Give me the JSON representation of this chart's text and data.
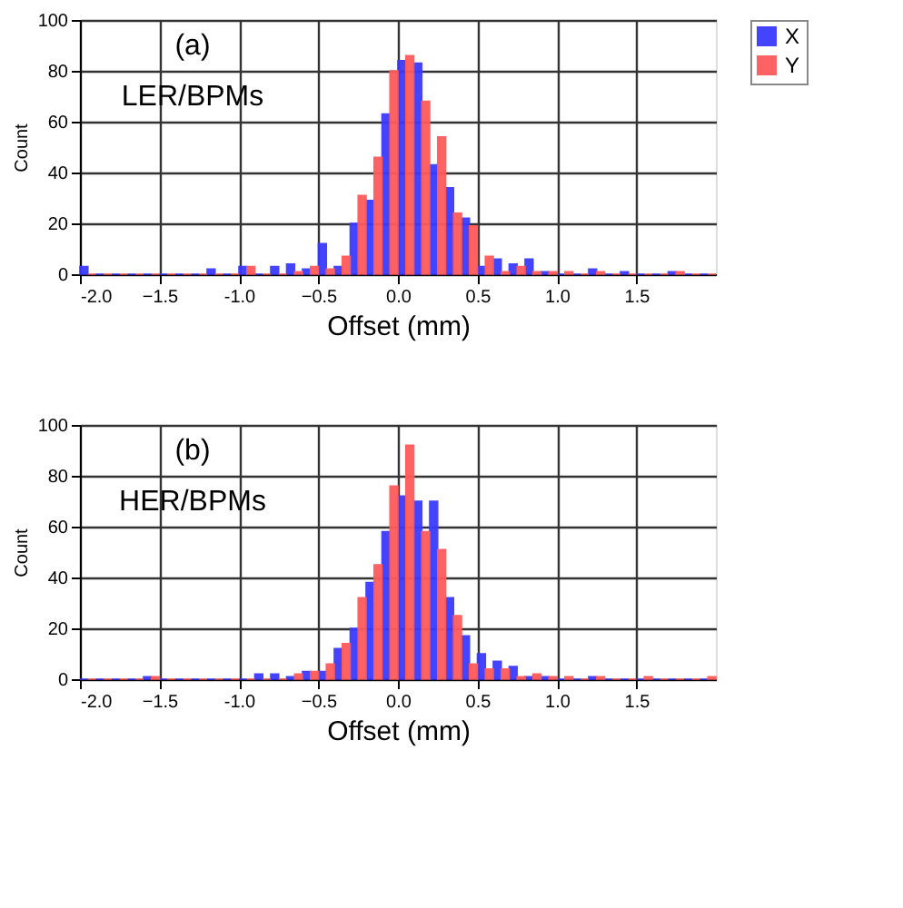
{
  "chart_data": [
    {
      "type": "histogram",
      "xlabel": "Offset (mm)",
      "ylabel": "Count",
      "annotations": [
        "(a)",
        "LER/BPMs"
      ],
      "bins": [
        -2.0,
        -1.9,
        -1.8,
        -1.7,
        -1.6,
        -1.5,
        -1.4,
        -1.3,
        -1.2,
        -1.1,
        -1.0,
        -0.9,
        -0.8,
        -0.7,
        -0.6,
        -0.5,
        -0.4,
        -0.3,
        -0.2,
        -0.1,
        0.0,
        0.1,
        0.2,
        0.3,
        0.4,
        0.5,
        0.6,
        0.7,
        0.8,
        0.9,
        1.0,
        1.1,
        1.2,
        1.3,
        1.4,
        1.5,
        1.6,
        1.7,
        1.8,
        1.9,
        2.0
      ],
      "series": [
        {
          "name": "X",
          "color": "#3a3aff",
          "values": [
            3,
            0,
            0,
            0,
            0,
            0,
            0,
            0,
            2,
            0,
            3,
            0,
            3,
            4,
            2,
            12,
            3,
            20,
            29,
            63,
            84,
            83,
            43,
            34,
            22,
            3,
            6,
            4,
            6,
            1,
            0,
            0,
            2,
            0,
            1,
            0,
            0,
            1,
            0,
            0
          ]
        },
        {
          "name": "Y",
          "color": "#ff5a5a",
          "values": [
            0,
            0,
            0,
            0,
            0,
            0,
            0,
            0,
            0,
            0,
            3,
            0,
            0,
            1,
            3,
            2,
            7,
            31,
            46,
            80,
            86,
            68,
            54,
            24,
            19,
            7,
            1,
            3,
            1,
            1,
            1,
            0,
            1,
            0,
            0,
            0,
            0,
            1,
            0,
            0
          ]
        }
      ],
      "xlim": [
        -2.0,
        2.0
      ],
      "xticks": [
        {
          "value": -2,
          "label": "-2.0"
        },
        -1.5,
        {
          "value": -1,
          "label": "-1.0"
        },
        -0.5,
        {
          "value": 0,
          "label": "0.0"
        },
        0.5,
        {
          "value": 1,
          "label": "1.0"
        },
        1.5
      ],
      "ylim": [
        0,
        100
      ],
      "yticks": [
        0,
        20,
        40,
        60,
        80,
        100
      ],
      "grid": true,
      "legend": "right"
    },
    {
      "type": "histogram",
      "xlabel": "Offset (mm)",
      "ylabel": "Count",
      "annotations": [
        "(b)",
        "HER/BPMs"
      ],
      "bins": [
        -2.0,
        -1.9,
        -1.8,
        -1.7,
        -1.6,
        -1.5,
        -1.4,
        -1.3,
        -1.2,
        -1.1,
        -1.0,
        -0.9,
        -0.8,
        -0.7,
        -0.6,
        -0.5,
        -0.4,
        -0.3,
        -0.2,
        -0.1,
        0.0,
        0.1,
        0.2,
        0.3,
        0.4,
        0.5,
        0.6,
        0.7,
        0.8,
        0.9,
        1.0,
        1.1,
        1.2,
        1.3,
        1.4,
        1.5,
        1.6,
        1.7,
        1.8,
        1.9,
        2.0
      ],
      "series": [
        {
          "name": "X",
          "color": "#3a3aff",
          "values": [
            0,
            0,
            0,
            0,
            1,
            0,
            0,
            0,
            0,
            0,
            0,
            2,
            2,
            1,
            3,
            3,
            12,
            20,
            38,
            58,
            72,
            70,
            70,
            32,
            17,
            10,
            7,
            5,
            1,
            1,
            0,
            0,
            1,
            0,
            0,
            0,
            0,
            0,
            0,
            0
          ]
        },
        {
          "name": "Y",
          "color": "#ff5a5a",
          "values": [
            0,
            0,
            0,
            0,
            1,
            0,
            0,
            0,
            0,
            0,
            0,
            0,
            0,
            2,
            3,
            6,
            14,
            32,
            45,
            76,
            92,
            58,
            51,
            25,
            6,
            4,
            4,
            1,
            2,
            1,
            1,
            0,
            1,
            0,
            0,
            1,
            0,
            0,
            0,
            1
          ]
        }
      ],
      "xlim": [
        -2.0,
        2.0
      ],
      "xticks": [
        {
          "value": -2,
          "label": "-2.0"
        },
        -1.5,
        {
          "value": -1,
          "label": "-1.0"
        },
        -0.5,
        {
          "value": 0,
          "label": "0.0"
        },
        0.5,
        {
          "value": 1,
          "label": "1.0"
        },
        1.5
      ],
      "ylim": [
        0,
        100
      ],
      "yticks": [
        0,
        20,
        40,
        60,
        80,
        100
      ],
      "grid": true,
      "legend": "right"
    }
  ]
}
